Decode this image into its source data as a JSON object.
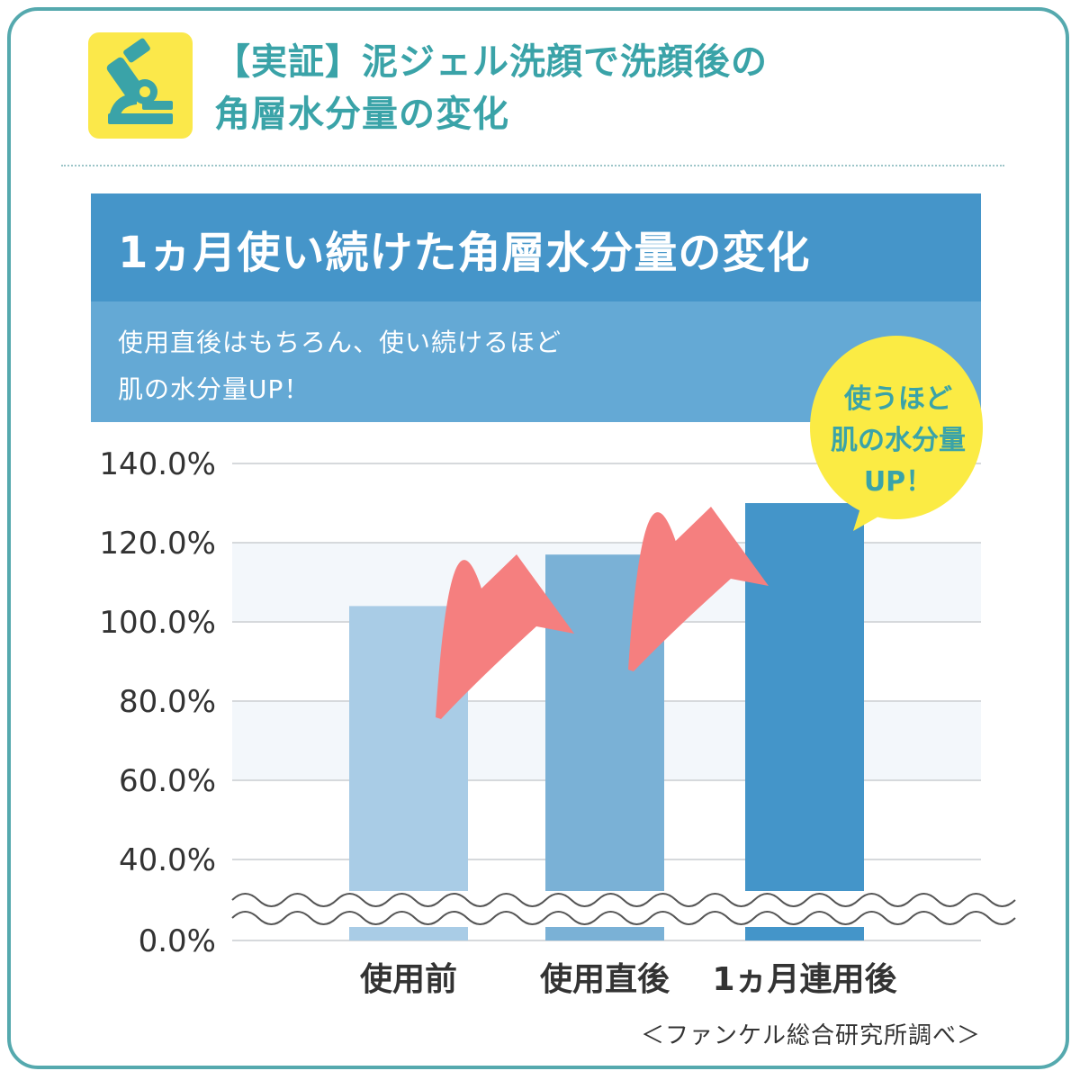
{
  "header": {
    "title_line1": "【実証】泥ジェル洗顔で洗顔後の",
    "title_line2": "角層水分量の変化",
    "icon": "microscope-icon"
  },
  "banner": {
    "title": "1ヵ月使い続けた角層水分量の変化",
    "subtitle_line1": "使用直後はもちろん、使い続けるほど",
    "subtitle_line2": "肌の水分量UP！"
  },
  "callout": {
    "line1": "使うほど",
    "line2": "肌の水分量",
    "line3": "UP！"
  },
  "source": "＜ファンケル総合研究所調べ＞",
  "colors": {
    "accent": "#3aa3a8",
    "banner": "#4595c9",
    "banner_sub": "#64a9d5",
    "bar1": "#a9cce6",
    "bar2": "#7ab1d6",
    "bar3": "#4495c9",
    "arrow": "#f57f7f",
    "callout": "#fbeb44"
  },
  "chart_data": {
    "type": "bar",
    "categories": [
      "使用前",
      "使用直後",
      "1ヵ月連用後"
    ],
    "values": [
      104,
      117,
      130
    ],
    "y_ticks": [
      0,
      40,
      60,
      80,
      100,
      120,
      140
    ],
    "y_tick_labels": [
      "0.0%",
      "40.0%",
      "60.0%",
      "80.0%",
      "100.0%",
      "120.0%",
      "140.0%"
    ],
    "ylim": [
      0,
      140
    ],
    "y_axis_break": [
      0,
      40
    ],
    "grid": true,
    "legend": "none"
  }
}
